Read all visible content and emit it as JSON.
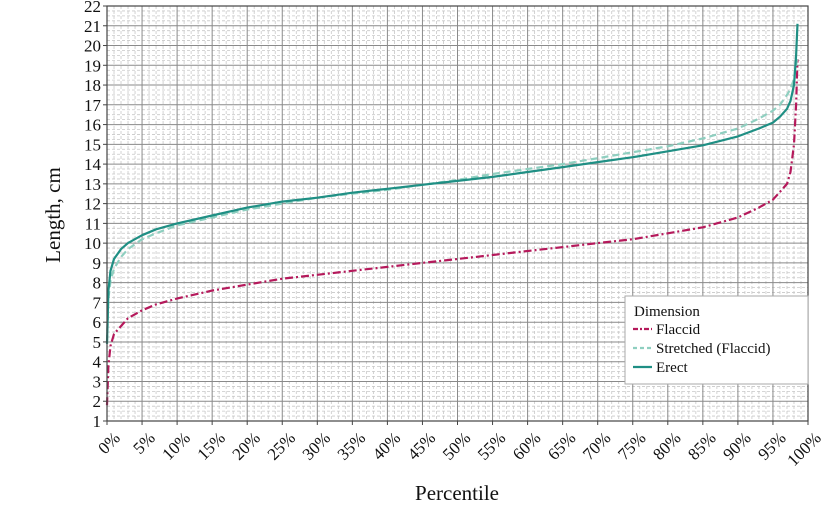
{
  "chart_data": {
    "type": "line",
    "title": "",
    "xlabel": "Percentile",
    "ylabel": "Length, cm",
    "xlim": [
      0,
      100
    ],
    "ylim": [
      1,
      22
    ],
    "x_ticks": [
      0,
      5,
      10,
      15,
      20,
      25,
      30,
      35,
      40,
      45,
      50,
      55,
      60,
      65,
      70,
      75,
      80,
      85,
      90,
      95,
      100
    ],
    "x_tick_labels": [
      "0%",
      "5%",
      "10%",
      "15%",
      "20%",
      "25%",
      "30%",
      "35%",
      "40%",
      "45%",
      "50%",
      "55%",
      "60%",
      "65%",
      "70%",
      "75%",
      "80%",
      "85%",
      "90%",
      "95%",
      "100%"
    ],
    "y_ticks": [
      1,
      2,
      3,
      4,
      5,
      6,
      7,
      8,
      9,
      10,
      11,
      12,
      13,
      14,
      15,
      16,
      17,
      18,
      19,
      20,
      21,
      22
    ],
    "y_tick_labels": [
      "1",
      "2",
      "3",
      "4",
      "5",
      "6",
      "7",
      "8",
      "9",
      "10",
      "11",
      "12",
      "13",
      "14",
      "15",
      "16",
      "17",
      "18",
      "19",
      "20",
      "21",
      "22"
    ],
    "grid": true,
    "legend": {
      "title": "Dimension",
      "placement": "bottom-right"
    },
    "series": [
      {
        "name": "Flaccid",
        "color": "#b5195b",
        "style": "dash-dot",
        "x": [
          0,
          0.2,
          0.5,
          1,
          2,
          3,
          5,
          7,
          10,
          15,
          20,
          25,
          30,
          35,
          40,
          45,
          50,
          55,
          60,
          65,
          70,
          75,
          80,
          85,
          90,
          93,
          95,
          96,
          97,
          97.5,
          98,
          98.3,
          98.5
        ],
        "y": [
          1.8,
          3.8,
          4.8,
          5.4,
          5.8,
          6.2,
          6.6,
          6.9,
          7.2,
          7.6,
          7.9,
          8.2,
          8.4,
          8.6,
          8.8,
          9.0,
          9.2,
          9.4,
          9.6,
          9.8,
          10.0,
          10.2,
          10.5,
          10.8,
          11.3,
          11.8,
          12.2,
          12.6,
          13.0,
          13.6,
          15.0,
          17.0,
          19.3
        ]
      },
      {
        "name": "Stretched (Flaccid)",
        "color": "#8fcfc0",
        "style": "dashed",
        "x": [
          0,
          0.2,
          0.5,
          1,
          2,
          3,
          5,
          7,
          10,
          15,
          20,
          25,
          30,
          35,
          40,
          45,
          50,
          55,
          60,
          65,
          70,
          75,
          80,
          85,
          90,
          93,
          95,
          96,
          97,
          97.5,
          98,
          98.3,
          98.5
        ],
        "y": [
          5.0,
          7.2,
          8.1,
          8.7,
          9.3,
          9.7,
          10.2,
          10.5,
          10.9,
          11.3,
          11.7,
          12.0,
          12.3,
          12.5,
          12.7,
          12.95,
          13.2,
          13.5,
          13.75,
          14.0,
          14.3,
          14.6,
          14.9,
          15.3,
          15.8,
          16.3,
          16.7,
          17.0,
          17.5,
          17.8,
          18.3,
          19.0,
          19.5
        ]
      },
      {
        "name": "Erect",
        "color": "#1f8f84",
        "style": "solid",
        "x": [
          0,
          0.2,
          0.5,
          1,
          2,
          3,
          5,
          7,
          10,
          15,
          20,
          25,
          30,
          35,
          40,
          45,
          50,
          55,
          60,
          65,
          70,
          75,
          80,
          85,
          90,
          93,
          95,
          96,
          97,
          97.5,
          98,
          98.3,
          98.5
        ],
        "y": [
          4.9,
          7.6,
          8.6,
          9.2,
          9.7,
          10.0,
          10.4,
          10.7,
          11.0,
          11.4,
          11.8,
          12.1,
          12.3,
          12.55,
          12.75,
          12.95,
          13.15,
          13.35,
          13.6,
          13.85,
          14.1,
          14.35,
          14.65,
          14.95,
          15.4,
          15.8,
          16.1,
          16.4,
          16.8,
          17.2,
          18.0,
          19.5,
          21.1
        ]
      }
    ]
  }
}
